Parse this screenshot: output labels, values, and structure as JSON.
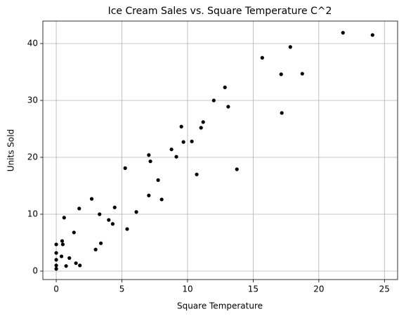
{
  "chart_data": {
    "type": "scatter",
    "title": "Ice Cream Sales vs. Square Temperature C^2",
    "x_label": "Square Temperature",
    "y_label": "Units Sold",
    "color": "#000000",
    "grid": true,
    "xlim": [
      -1.02,
      26.0
    ],
    "ylim": [
      -1.48,
      43.95
    ],
    "xticks": [
      0,
      5,
      10,
      15,
      20,
      25
    ],
    "yticks": [
      0,
      10,
      20,
      30,
      40
    ],
    "x": [
      0,
      0,
      0,
      0,
      0,
      0.4,
      0.45,
      0.5,
      0.6,
      0.75,
      1.0,
      1.35,
      1.5,
      1.75,
      1.8,
      2.7,
      3.0,
      3.3,
      3.4,
      4.0,
      4.3,
      4.45,
      5.25,
      5.4,
      6.1,
      7.05,
      7.05,
      7.17,
      7.76,
      8.03,
      8.78,
      9.15,
      9.53,
      9.69,
      10.33,
      10.7,
      11.03,
      11.19,
      12.0,
      12.85,
      13.1,
      13.76,
      15.69,
      17.13,
      17.18,
      17.83,
      18.74,
      21.84,
      24.09
    ],
    "values": [
      0.4,
      1.0,
      2.0,
      3.2,
      4.7,
      2.6,
      5.3,
      4.7,
      9.4,
      0.9,
      2.3,
      6.8,
      1.4,
      11.0,
      1.0,
      12.7,
      3.8,
      10.0,
      4.9,
      9.0,
      8.3,
      11.2,
      18.1,
      7.4,
      10.4,
      13.3,
      20.4,
      19.3,
      16.0,
      12.6,
      21.4,
      20.1,
      25.4,
      22.7,
      22.8,
      17.0,
      25.2,
      26.2,
      30.0,
      32.3,
      28.9,
      17.9,
      37.5,
      34.6,
      27.8,
      39.4,
      34.7,
      41.9,
      41.5
    ]
  }
}
